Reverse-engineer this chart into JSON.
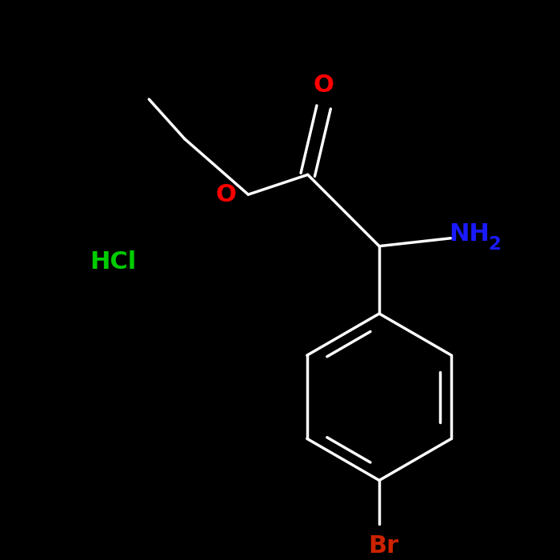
{
  "background_color": "#000000",
  "fig_size": [
    7.0,
    7.0
  ],
  "dpi": 100,
  "bond_lw": 2.5,
  "label_fontsize": 22,
  "colors": {
    "O": "#ff0000",
    "N": "#1a1aff",
    "Br": "#cc2200",
    "Cl_green": "#00cc00",
    "bond": "#ffffff",
    "bg": "#000000"
  }
}
